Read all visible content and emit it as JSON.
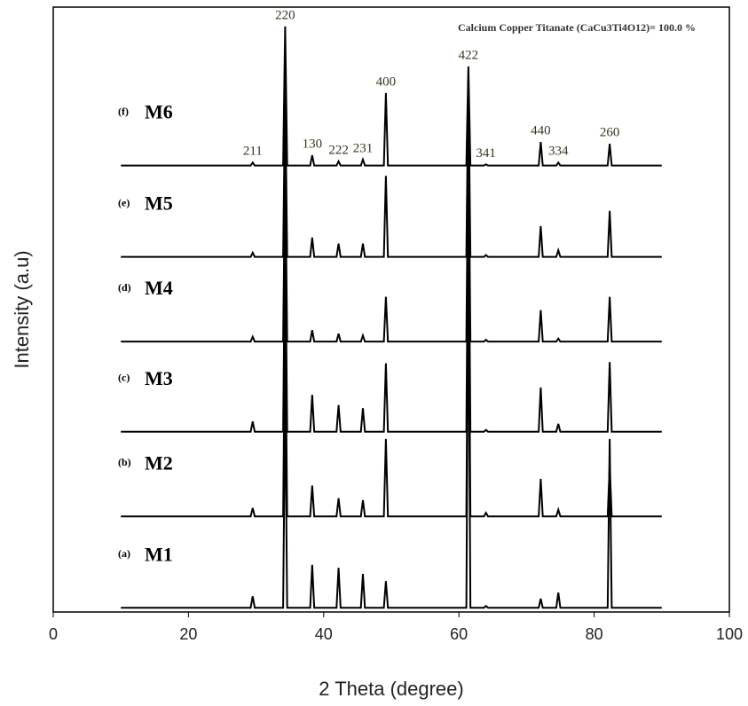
{
  "chart_data": {
    "type": "line",
    "x_label": "2 Theta (degree)",
    "y_label": "Intensity (a.u)",
    "annotation": "Calcium Copper Titanate (CaCu3Ti4O12)= 100.0 %",
    "xlim": [
      0,
      100
    ],
    "xticks": [
      0,
      20,
      40,
      60,
      80,
      100
    ],
    "ylim": [
      0,
      100
    ],
    "color": "#000000",
    "x": [
      10,
      29.2,
      29.5,
      29.8,
      34.0,
      34.3,
      34.6,
      38.0,
      38.3,
      38.6,
      41.9,
      42.2,
      42.5,
      45.5,
      45.8,
      46.1,
      48.9,
      49.2,
      49.5,
      61.1,
      61.4,
      61.7,
      63.7,
      64.0,
      64.3,
      71.8,
      72.1,
      72.4,
      74.4,
      74.7,
      75.0,
      82.0,
      82.3,
      82.6,
      90
    ],
    "series": [
      {
        "name": "M6",
        "tag": "(f)",
        "values": [
          73.8,
          73.8,
          74.3,
          73.8,
          73.8,
          96.8,
          73.8,
          73.8,
          75.5,
          73.8,
          73.8,
          74.5,
          73.8,
          73.8,
          74.8,
          73.8,
          73.8,
          85.8,
          73.8,
          73.8,
          90.2,
          73.8,
          73.8,
          74.0,
          73.8,
          73.8,
          77.7,
          73.8,
          73.8,
          74.3,
          73.8,
          73.8,
          77.4,
          73.8,
          73.8
        ]
      },
      {
        "name": "M5",
        "tag": "(e)",
        "values": [
          58.7,
          58.7,
          59.4,
          58.7,
          58.7,
          86.5,
          58.7,
          58.7,
          61.9,
          58.7,
          58.7,
          60.9,
          58.7,
          58.7,
          60.9,
          58.7,
          58.7,
          72.1,
          58.7,
          58.7,
          88.0,
          58.7,
          58.7,
          59.0,
          58.7,
          58.7,
          63.8,
          58.7,
          58.7,
          59.8,
          58.7,
          58.7,
          66.3,
          58.7,
          58.7
        ]
      },
      {
        "name": "M4",
        "tag": "(d)",
        "values": [
          44.7,
          44.7,
          45.5,
          44.7,
          44.7,
          74.8,
          44.7,
          44.7,
          46.6,
          44.7,
          44.7,
          46.0,
          44.7,
          44.7,
          45.7,
          44.7,
          44.7,
          52.1,
          44.7,
          44.7,
          80.6,
          44.7,
          44.7,
          45.0,
          44.7,
          44.7,
          49.9,
          44.7,
          44.7,
          45.2,
          44.7,
          44.7,
          52.1,
          44.7,
          44.7
        ]
      },
      {
        "name": "M3",
        "tag": "(c)",
        "values": [
          29.8,
          29.8,
          31.5,
          29.8,
          29.8,
          64.5,
          29.8,
          29.8,
          35.9,
          29.8,
          29.8,
          34.2,
          29.8,
          29.8,
          33.7,
          29.8,
          29.8,
          41.1,
          29.8,
          29.8,
          71.8,
          29.8,
          29.8,
          30.1,
          29.8,
          29.8,
          37.1,
          29.8,
          29.8,
          31.1,
          29.8,
          29.8,
          41.3,
          29.8,
          29.8
        ]
      },
      {
        "name": "M2",
        "tag": "(b)",
        "values": [
          15.8,
          15.8,
          17.2,
          15.8,
          15.8,
          51.3,
          15.8,
          15.8,
          20.9,
          15.8,
          15.8,
          18.8,
          15.8,
          15.8,
          18.5,
          15.8,
          15.8,
          28.6,
          15.8,
          15.8,
          63.0,
          15.8,
          15.8,
          16.4,
          15.8,
          15.8,
          22.0,
          15.8,
          15.8,
          16.9,
          15.8,
          15.8,
          24.2,
          15.8,
          15.8
        ]
      },
      {
        "name": "M1",
        "tag": "(a)",
        "values": [
          0.7,
          0.7,
          2.6,
          0.7,
          0.7,
          36.7,
          0.7,
          0.7,
          7.8,
          0.7,
          0.7,
          7.3,
          0.7,
          0.7,
          6.3,
          0.7,
          0.7,
          5.1,
          0.7,
          0.7,
          57.2,
          0.7,
          0.7,
          1.0,
          0.7,
          0.7,
          2.2,
          0.7,
          0.7,
          3.2,
          0.7,
          0.7,
          28.6,
          0.7,
          0.7
        ]
      }
    ],
    "peak_labels": [
      {
        "text": "211",
        "x": 29.5
      },
      {
        "text": "220",
        "x": 34.3
      },
      {
        "text": "130",
        "x": 38.3
      },
      {
        "text": "222",
        "x": 42.2
      },
      {
        "text": "231",
        "x": 45.8
      },
      {
        "text": "400",
        "x": 49.2
      },
      {
        "text": "422",
        "x": 61.4
      },
      {
        "text": "341",
        "x": 64.0
      },
      {
        "text": "440",
        "x": 72.1
      },
      {
        "text": "334",
        "x": 74.7
      },
      {
        "text": "260",
        "x": 82.3
      }
    ]
  }
}
